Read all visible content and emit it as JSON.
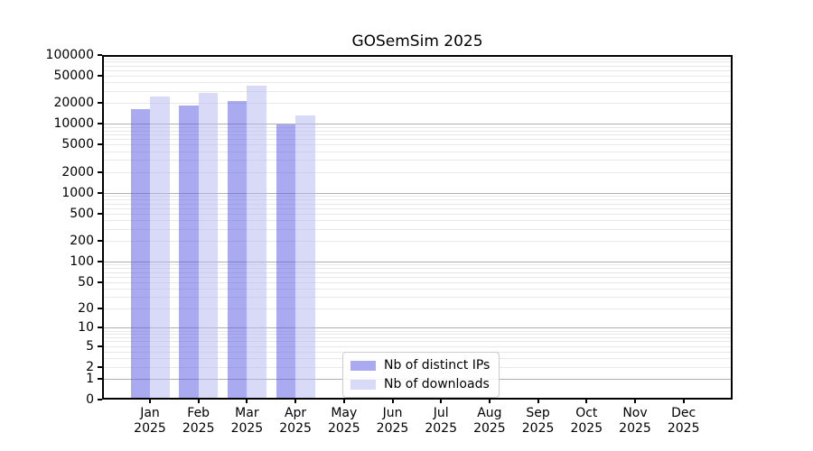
{
  "chart_data": {
    "type": "bar",
    "title": "GOSemSim 2025",
    "categories": [
      "Jan 2025",
      "Feb 2025",
      "Mar 2025",
      "Apr 2025",
      "May 2025",
      "Jun 2025",
      "Jul 2025",
      "Aug 2025",
      "Sep 2025",
      "Oct 2025",
      "Nov 2025",
      "Dec 2025"
    ],
    "series": [
      {
        "name": "Nb of distinct IPs",
        "color_solid": "#aaaaf0",
        "color_fill": "rgba(85,85,225,0.5)",
        "values": [
          16500,
          18700,
          21700,
          9900,
          0,
          0,
          0,
          0,
          0,
          0,
          0,
          0
        ]
      },
      {
        "name": "Nb of downloads",
        "color_solid": "#d9d9f8",
        "color_fill": "rgba(180,180,242,0.5)",
        "values": [
          25000,
          28500,
          35500,
          13400,
          0,
          0,
          0,
          0,
          0,
          0,
          0,
          0
        ]
      }
    ],
    "y_axis": {
      "scale": "log10(1+v)",
      "max": 100000,
      "tick_labels": [
        "100000",
        "50000",
        "20000",
        "10000",
        "5000",
        "2000",
        "1000",
        "500",
        "200",
        "100",
        "50",
        "20",
        "10",
        "5",
        "2",
        "1",
        "0"
      ],
      "tick_values": [
        100000,
        50000,
        20000,
        10000,
        5000,
        2000,
        1000,
        500,
        200,
        100,
        50,
        20,
        10,
        5,
        2,
        1,
        0
      ]
    },
    "grid": {
      "major_values": [
        1,
        10,
        100,
        1000,
        10000
      ],
      "major_color": "#b0b0b0",
      "minor_color": "#e8e8e8"
    },
    "legend_position": "lower center",
    "spine_color": "#000000"
  }
}
